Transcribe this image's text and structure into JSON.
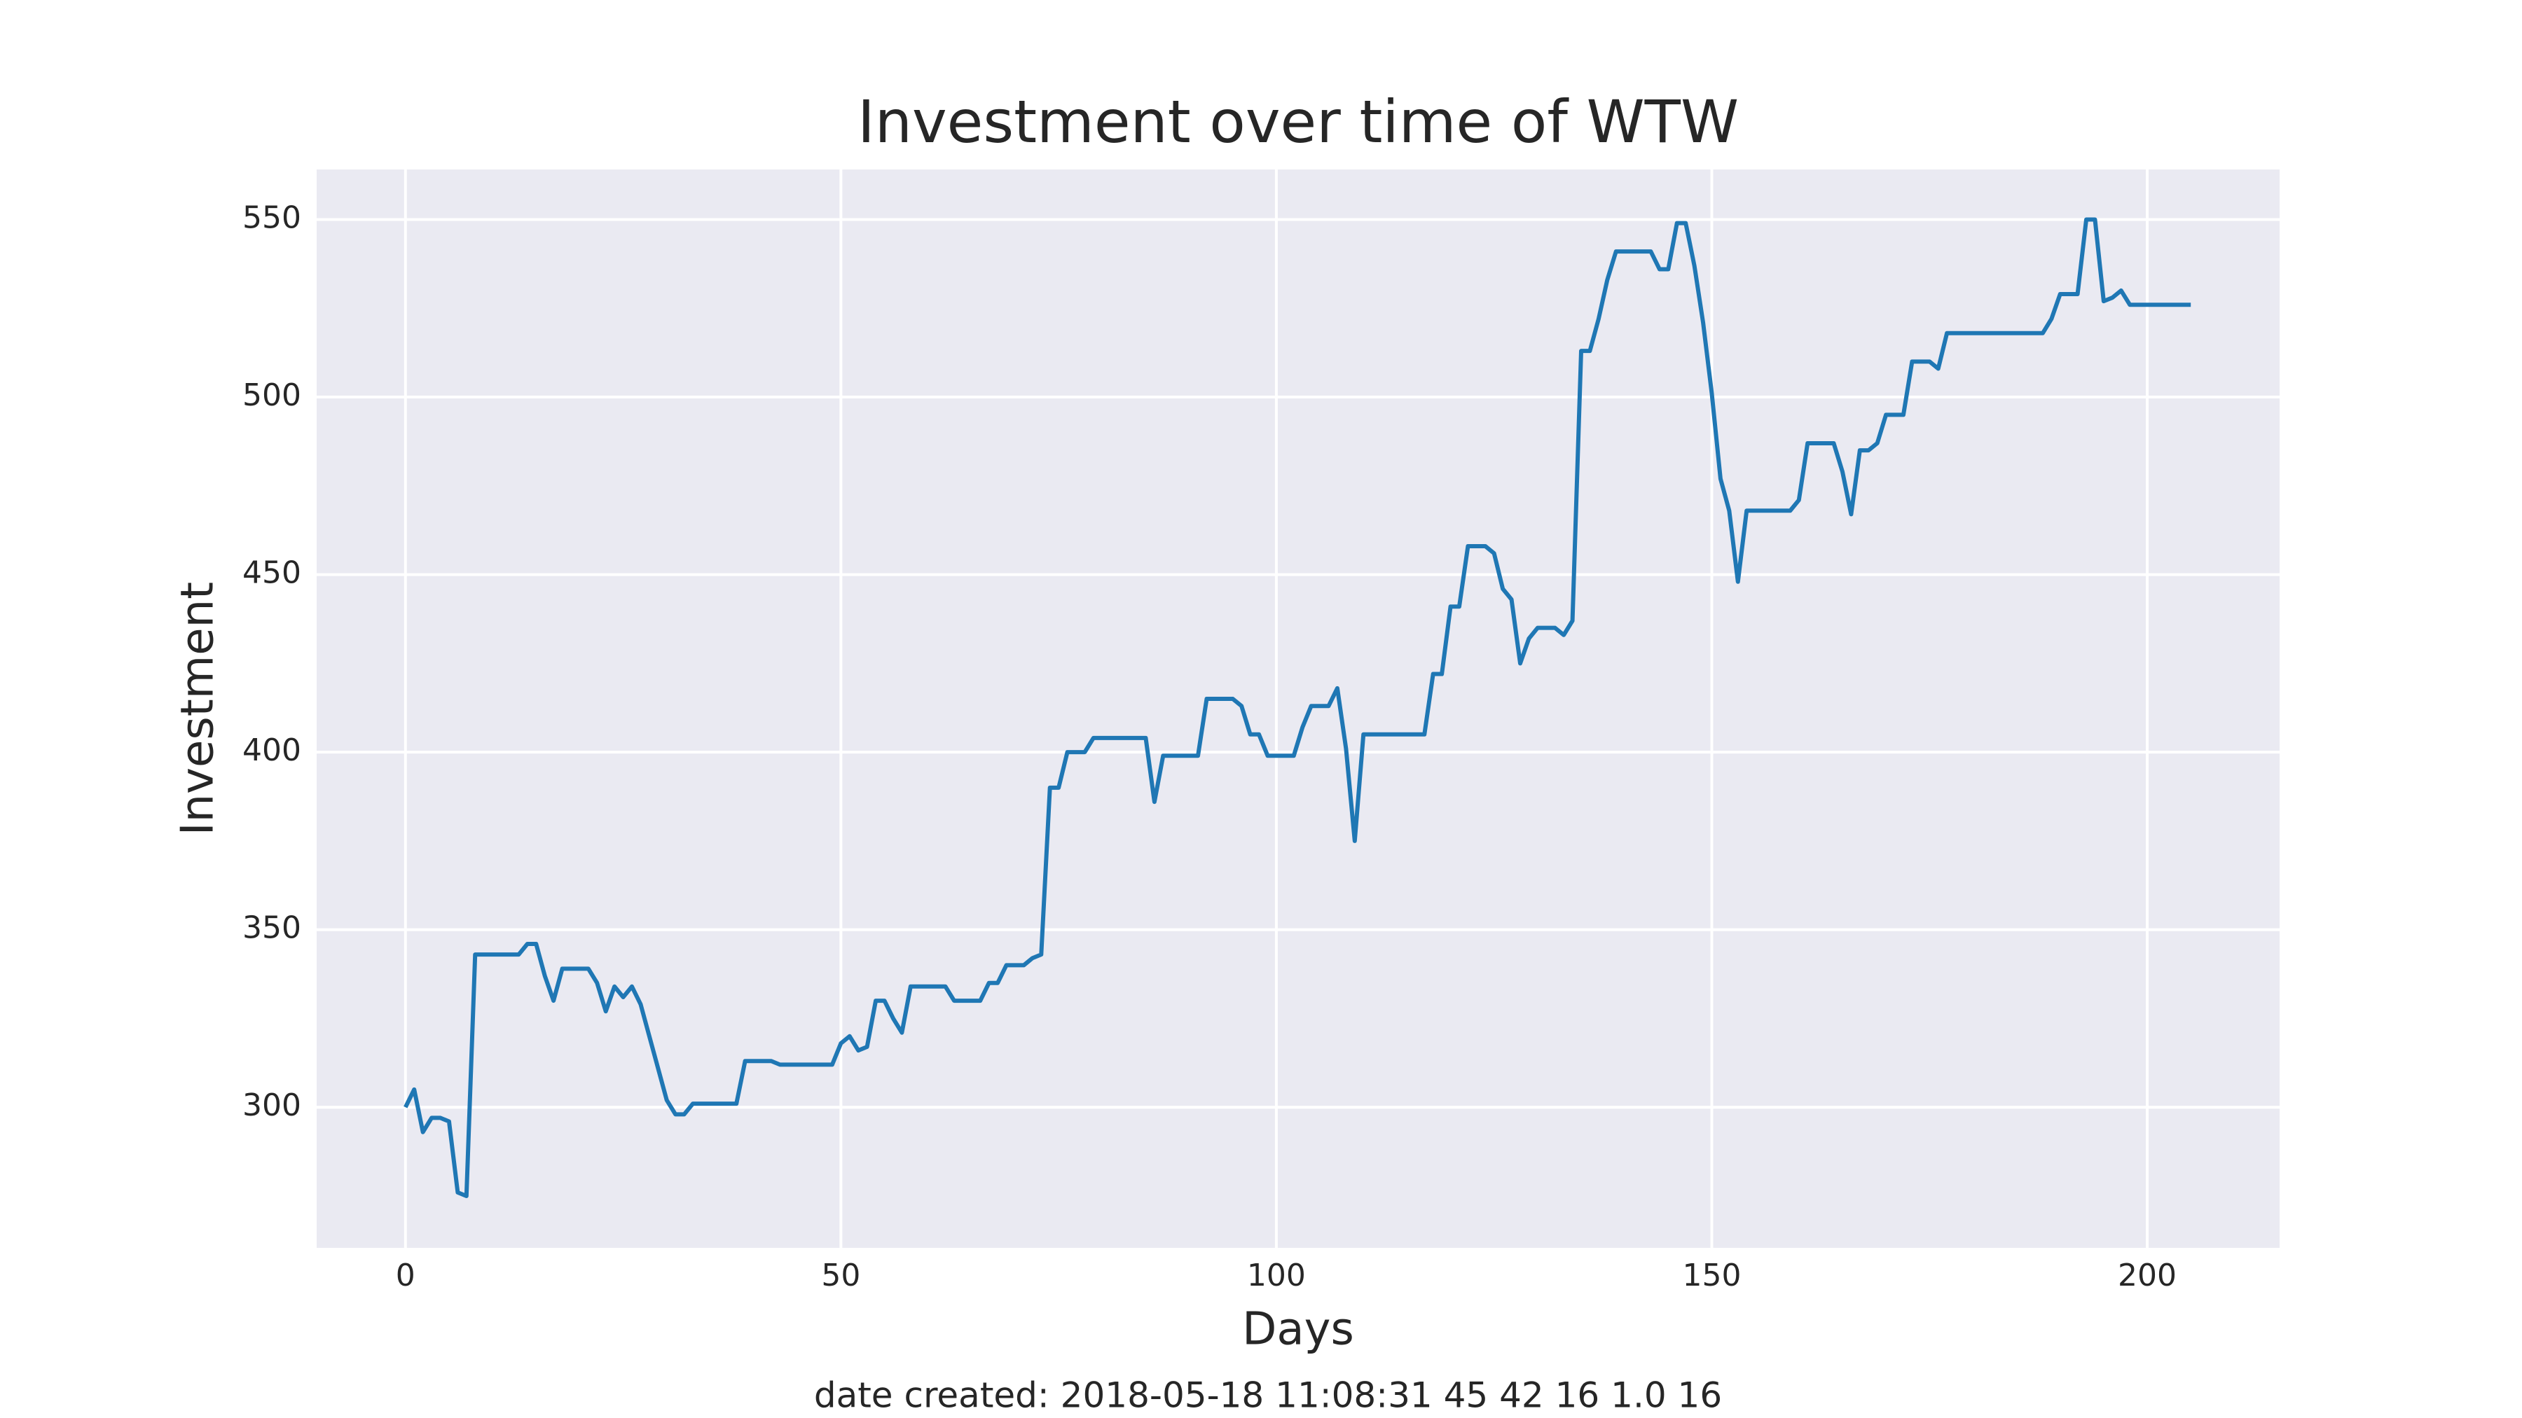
{
  "chart_data": {
    "type": "line",
    "title": "Investment over time of WTW",
    "x_label": "Days",
    "y_label": "Investment",
    "footnote": "date created: 2018-05-18 11:08:31 45 42 16 1.0 16",
    "x": [
      0,
      1,
      2,
      3,
      4,
      5,
      6,
      7,
      8,
      9,
      10,
      11,
      12,
      13,
      14,
      15,
      16,
      17,
      18,
      19,
      20,
      21,
      22,
      23,
      24,
      25,
      26,
      27,
      28,
      29,
      30,
      31,
      32,
      33,
      34,
      35,
      36,
      37,
      38,
      39,
      40,
      41,
      42,
      43,
      44,
      45,
      46,
      47,
      48,
      49,
      50,
      51,
      52,
      53,
      54,
      55,
      56,
      57,
      58,
      59,
      60,
      61,
      62,
      63,
      64,
      65,
      66,
      67,
      68,
      69,
      70,
      71,
      72,
      73,
      74,
      75,
      76,
      77,
      78,
      79,
      80,
      81,
      82,
      83,
      84,
      85,
      86,
      87,
      88,
      89,
      90,
      91,
      92,
      93,
      94,
      95,
      96,
      97,
      98,
      99,
      100,
      101,
      102,
      103,
      104,
      105,
      106,
      107,
      108,
      109,
      110,
      111,
      112,
      113,
      114,
      115,
      116,
      117,
      118,
      119,
      120,
      121,
      122,
      123,
      124,
      125,
      126,
      127,
      128,
      129,
      130,
      131,
      132,
      133,
      134,
      135,
      136,
      137,
      138,
      139,
      140,
      141,
      142,
      143,
      144,
      145,
      146,
      147,
      148,
      149,
      150,
      151,
      152,
      153,
      154,
      155,
      156,
      157,
      158,
      159,
      160,
      161,
      162,
      163,
      164,
      165,
      166,
      167,
      168,
      169,
      170,
      171,
      172,
      173,
      174,
      175,
      176,
      177,
      178,
      179,
      180,
      181,
      182,
      183,
      184,
      185,
      186,
      187,
      188,
      189,
      190,
      191,
      192,
      193,
      194,
      195,
      196,
      197,
      198,
      199,
      200,
      201,
      202,
      203,
      204,
      205
    ],
    "series": [
      {
        "color": "#1f77b4",
        "values": [
          300,
          305,
          293,
          297,
          297,
          296,
          276,
          275,
          343,
          343,
          343,
          343,
          343,
          343,
          346,
          346,
          337,
          330,
          339,
          339,
          339,
          339,
          335,
          327,
          334,
          331,
          334,
          329,
          320,
          311,
          302,
          298,
          298,
          301,
          301,
          301,
          301,
          301,
          301,
          313,
          313,
          313,
          313,
          312,
          312,
          312,
          312,
          312,
          312,
          312,
          318,
          320,
          316,
          317,
          330,
          330,
          325,
          321,
          334,
          334,
          334,
          334,
          334,
          330,
          330,
          330,
          330,
          335,
          335,
          340,
          340,
          340,
          342,
          343,
          390,
          390,
          400,
          400,
          400,
          404,
          404,
          404,
          404,
          404,
          404,
          404,
          386,
          399,
          399,
          399,
          399,
          399,
          415,
          415,
          415,
          415,
          413,
          405,
          405,
          399,
          399,
          399,
          399,
          407,
          413,
          413,
          413,
          418,
          401,
          375,
          405,
          405,
          405,
          405,
          405,
          405,
          405,
          405,
          422,
          422,
          441,
          441,
          458,
          458,
          458,
          456,
          446,
          443,
          425,
          432,
          435,
          435,
          435,
          433,
          437,
          513,
          513,
          522,
          533,
          541,
          541,
          541,
          541,
          541,
          536,
          536,
          549,
          549,
          537,
          521,
          501,
          477,
          468,
          448,
          468,
          468,
          468,
          468,
          468,
          468,
          471,
          487,
          487,
          487,
          487,
          479,
          467,
          485,
          485,
          487,
          495,
          495,
          495,
          510,
          510,
          510,
          508,
          518,
          518,
          518,
          518,
          518,
          518,
          518,
          518,
          518,
          518,
          518,
          518,
          522,
          529,
          529,
          529,
          550,
          550,
          527,
          528,
          530,
          526,
          526,
          526,
          526,
          526,
          526,
          526,
          526
        ]
      }
    ],
    "xlim": [
      -10.2,
      215.2
    ],
    "xticks": [
      0,
      50,
      100,
      150,
      200
    ],
    "ylim": [
      260.4,
      564.1
    ],
    "yticks": [
      300,
      350,
      400,
      450,
      500,
      550
    ],
    "grid": true
  }
}
